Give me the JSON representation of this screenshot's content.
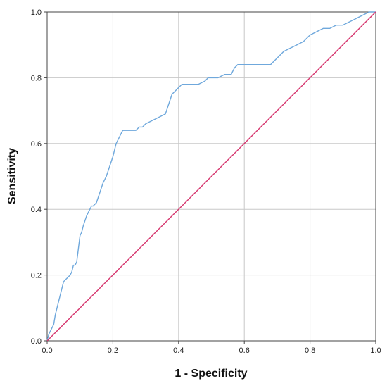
{
  "chart_data": {
    "type": "line",
    "title": "",
    "xlabel": "1 - Specificity",
    "ylabel": "Sensitivity",
    "xlim": [
      0,
      1
    ],
    "ylim": [
      0,
      1
    ],
    "grid": true,
    "x_ticks": [
      "0.0",
      "0.2",
      "0.4",
      "0.6",
      "0.8",
      "1.0"
    ],
    "y_ticks": [
      "0.0",
      "0.2",
      "0.4",
      "0.6",
      "0.8",
      "1.0"
    ],
    "series": [
      {
        "color": "#6fa8dc",
        "x": [
          0.0,
          0.005,
          0.01,
          0.015,
          0.02,
          0.025,
          0.03,
          0.035,
          0.04,
          0.045,
          0.05,
          0.06,
          0.07,
          0.075,
          0.08,
          0.085,
          0.09,
          0.095,
          0.1,
          0.105,
          0.11,
          0.12,
          0.125,
          0.13,
          0.135,
          0.14,
          0.15,
          0.16,
          0.17,
          0.18,
          0.19,
          0.2,
          0.21,
          0.22,
          0.23,
          0.24,
          0.25,
          0.26,
          0.27,
          0.28,
          0.29,
          0.3,
          0.32,
          0.34,
          0.36,
          0.38,
          0.39,
          0.4,
          0.41,
          0.42,
          0.44,
          0.46,
          0.48,
          0.49,
          0.5,
          0.52,
          0.54,
          0.56,
          0.57,
          0.58,
          0.59,
          0.6,
          0.62,
          0.64,
          0.66,
          0.68,
          0.69,
          0.7,
          0.72,
          0.74,
          0.76,
          0.78,
          0.79,
          0.8,
          0.82,
          0.84,
          0.86,
          0.88,
          0.9,
          0.92,
          0.94,
          0.96,
          0.98,
          1.0
        ],
        "y": [
          0.0,
          0.02,
          0.03,
          0.04,
          0.05,
          0.08,
          0.1,
          0.12,
          0.14,
          0.16,
          0.18,
          0.19,
          0.2,
          0.21,
          0.23,
          0.23,
          0.24,
          0.28,
          0.32,
          0.33,
          0.35,
          0.38,
          0.39,
          0.4,
          0.41,
          0.41,
          0.42,
          0.45,
          0.48,
          0.5,
          0.53,
          0.56,
          0.6,
          0.62,
          0.64,
          0.64,
          0.64,
          0.64,
          0.64,
          0.65,
          0.65,
          0.66,
          0.67,
          0.68,
          0.69,
          0.75,
          0.76,
          0.77,
          0.78,
          0.78,
          0.78,
          0.78,
          0.79,
          0.8,
          0.8,
          0.8,
          0.81,
          0.81,
          0.83,
          0.84,
          0.84,
          0.84,
          0.84,
          0.84,
          0.84,
          0.84,
          0.85,
          0.86,
          0.88,
          0.89,
          0.9,
          0.91,
          0.92,
          0.93,
          0.94,
          0.95,
          0.95,
          0.96,
          0.96,
          0.97,
          0.98,
          0.99,
          1.0,
          1.0
        ]
      },
      {
        "color": "#d6336c",
        "x": [
          0,
          1
        ],
        "y": [
          0,
          1
        ]
      }
    ]
  }
}
